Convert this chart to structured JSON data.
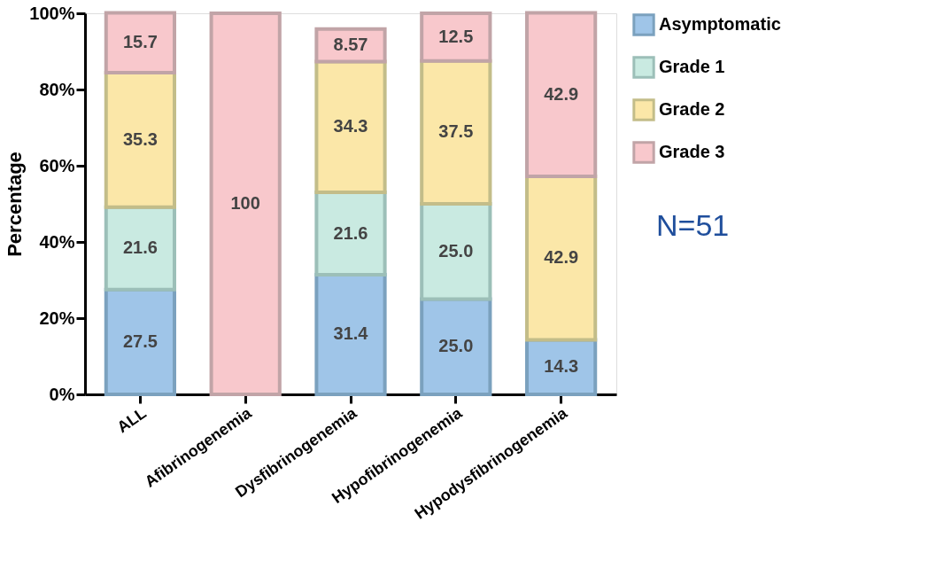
{
  "chart_data": {
    "type": "bar",
    "stacked": true,
    "ylabel": "Percentage",
    "categories": [
      "ALL",
      "Afibrinogenemia",
      "Dysfibrinogenemia",
      "Hypofibrinogenemia",
      "Hypodysfibrinogenemia"
    ],
    "series": [
      {
        "name": "Asymptomatic",
        "color": "#9fc5e8",
        "values": [
          27.5,
          null,
          31.4,
          25.0,
          14.3
        ],
        "value_labels": [
          "27.5",
          null,
          "31.4",
          "25.0",
          "14.3"
        ]
      },
      {
        "name": "Grade 1",
        "color": "#c9eae1",
        "values": [
          21.6,
          null,
          21.6,
          25.0,
          null
        ],
        "value_labels": [
          "21.6",
          null,
          "21.6",
          "25.0",
          null
        ]
      },
      {
        "name": "Grade 2",
        "color": "#fbe7a8",
        "values": [
          35.3,
          null,
          34.3,
          37.5,
          42.9
        ],
        "value_labels": [
          "35.3",
          null,
          "34.3",
          "37.5",
          "42.9"
        ]
      },
      {
        "name": "Grade 3",
        "color": "#f8c8cc",
        "values": [
          15.7,
          100,
          8.57,
          12.5,
          42.9
        ],
        "value_labels": [
          "15.7",
          "100",
          "8.57",
          "12.5",
          "42.9"
        ]
      }
    ],
    "ylim": [
      0,
      100
    ],
    "yticks": [
      {
        "value": 0,
        "label": "0%"
      },
      {
        "value": 20,
        "label": "20%"
      },
      {
        "value": 40,
        "label": "40%"
      },
      {
        "value": 60,
        "label": "60%"
      },
      {
        "value": 80,
        "label": "80%"
      },
      {
        "value": 100,
        "label": "100%"
      }
    ],
    "annotations": [
      "N=51"
    ],
    "legend": "top right",
    "grid": false
  }
}
